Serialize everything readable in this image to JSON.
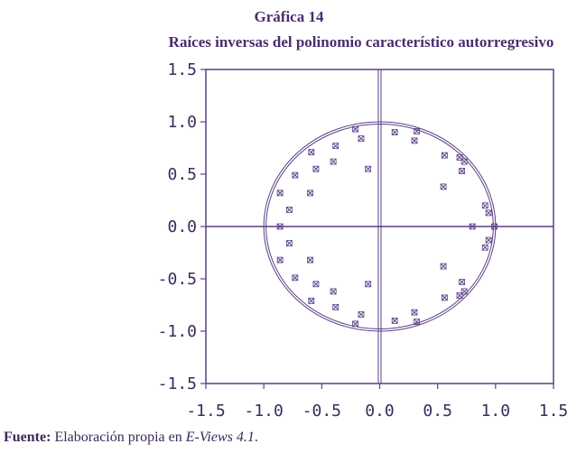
{
  "colors": {
    "accent": "#5b3f86",
    "text": "#3d2a5a"
  },
  "chart_data": {
    "type": "scatter",
    "title": "Gráfica 14",
    "subtitle": "Raíces inversas del polinomio característico autorregresivo",
    "xlabel": "",
    "ylabel": "",
    "xlim": [
      -1.5,
      1.5
    ],
    "ylim": [
      -1.5,
      1.5
    ],
    "x_ticks": [
      "-1.5",
      "-1.0",
      "-0.5",
      "0.0",
      "0.5",
      "1.0",
      "1.5"
    ],
    "y_ticks": [
      "1.5",
      "1.0",
      "0.5",
      "0.0",
      "-0.5",
      "-1.0",
      "-1.5"
    ],
    "grid": false,
    "unit_circle": true,
    "zero_lines": true,
    "marker": "x",
    "points": [
      [
        -0.86,
        0.0
      ],
      [
        0.8,
        0.0
      ],
      [
        0.99,
        0.0
      ],
      [
        -0.21,
        0.93
      ],
      [
        -0.21,
        -0.93
      ],
      [
        -0.16,
        0.84
      ],
      [
        -0.16,
        -0.84
      ],
      [
        -0.1,
        0.55
      ],
      [
        -0.1,
        -0.55
      ],
      [
        0.13,
        0.9
      ],
      [
        0.13,
        -0.9
      ],
      [
        0.3,
        0.82
      ],
      [
        0.3,
        -0.82
      ],
      [
        0.32,
        0.91
      ],
      [
        0.32,
        -0.91
      ],
      [
        -0.38,
        0.77
      ],
      [
        -0.38,
        -0.77
      ],
      [
        -0.4,
        0.62
      ],
      [
        -0.4,
        -0.62
      ],
      [
        -0.55,
        0.55
      ],
      [
        -0.55,
        -0.55
      ],
      [
        -0.59,
        0.71
      ],
      [
        -0.59,
        -0.71
      ],
      [
        -0.6,
        0.32
      ],
      [
        -0.6,
        -0.32
      ],
      [
        -0.73,
        0.49
      ],
      [
        -0.73,
        -0.49
      ],
      [
        -0.78,
        0.16
      ],
      [
        -0.78,
        -0.16
      ],
      [
        -0.86,
        0.32
      ],
      [
        -0.86,
        -0.32
      ],
      [
        0.56,
        0.68
      ],
      [
        0.56,
        -0.68
      ],
      [
        0.55,
        0.38
      ],
      [
        0.55,
        -0.38
      ],
      [
        0.69,
        0.66
      ],
      [
        0.69,
        -0.66
      ],
      [
        0.71,
        0.53
      ],
      [
        0.71,
        -0.53
      ],
      [
        0.73,
        0.62
      ],
      [
        0.73,
        -0.62
      ],
      [
        0.91,
        0.2
      ],
      [
        0.91,
        -0.2
      ],
      [
        0.94,
        0.13
      ],
      [
        0.94,
        -0.13
      ]
    ]
  },
  "source": {
    "label": "Fuente:",
    "text": " Elaboración propia en ",
    "software": "E-Views 4.1",
    "end": "."
  }
}
